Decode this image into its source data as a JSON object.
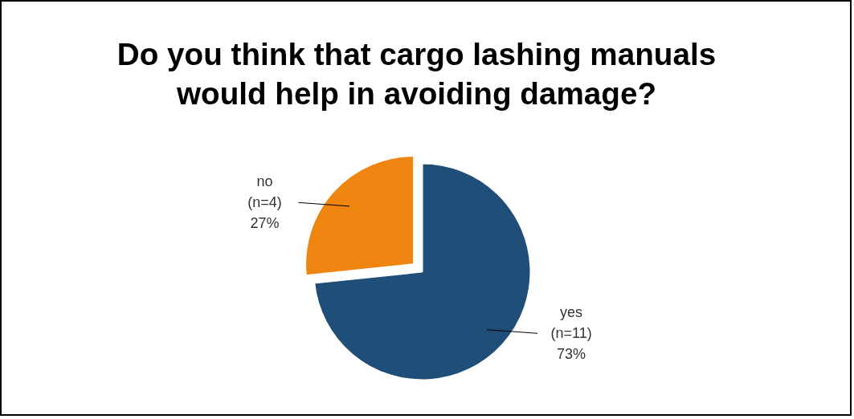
{
  "chart_data": {
    "type": "pie",
    "title": "Do you think that cargo lashing manuals\nwould help in avoiding damage?",
    "categories": [
      "yes",
      "no"
    ],
    "values": [
      11,
      4
    ],
    "colors": [
      "#1f4e79",
      "#ee8511"
    ],
    "value_labels": [
      "(n=11)\n73%",
      "(n=4)\n27%"
    ]
  }
}
